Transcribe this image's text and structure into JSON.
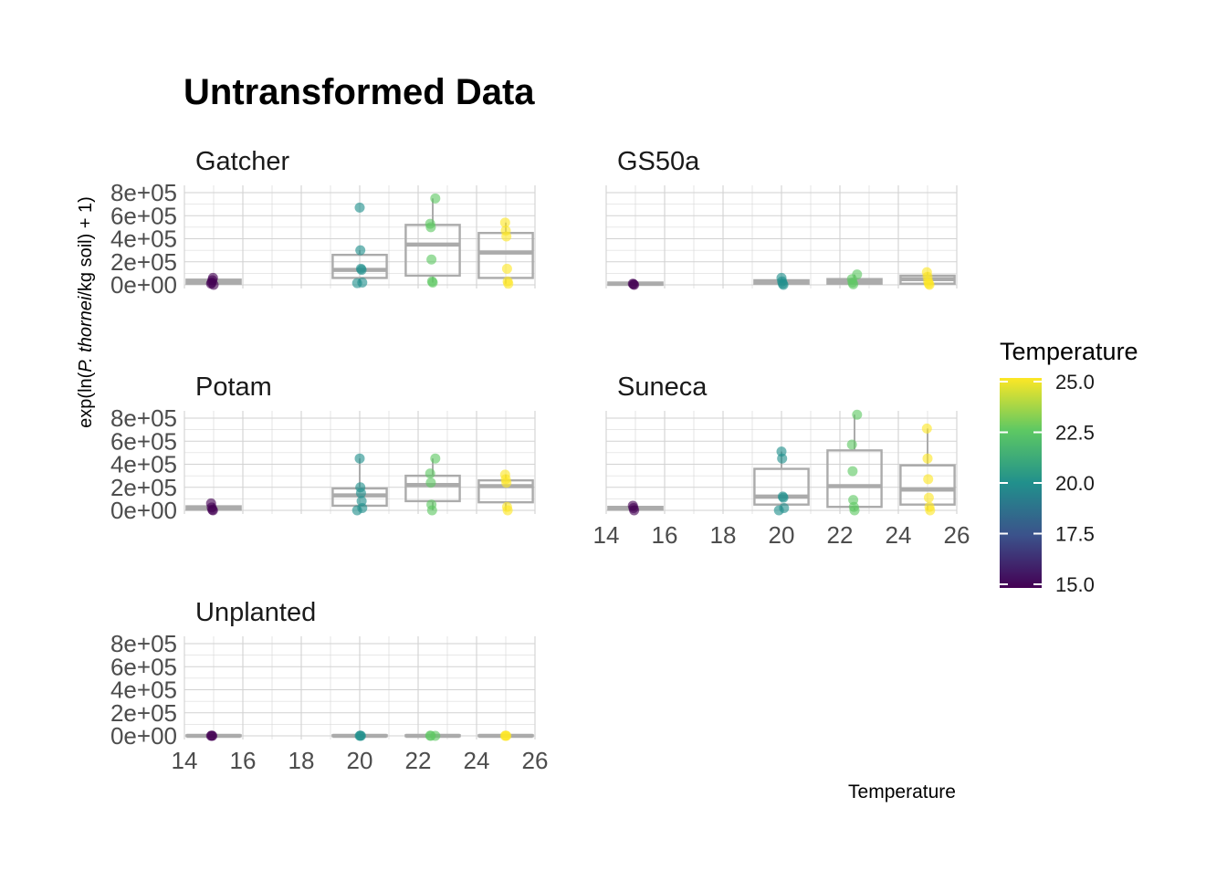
{
  "chart_data": {
    "type": "box",
    "title": "Untransformed Data",
    "xlabel": "Temperature",
    "ylabel_parts": [
      "exp(ln(",
      "P. thornei",
      "/kg soil) + 1)"
    ],
    "xlim": [
      14,
      26
    ],
    "ylim": [
      0,
      800000
    ],
    "x_ticks": [
      "14",
      "16",
      "18",
      "20",
      "22",
      "24",
      "26"
    ],
    "y_ticks": [
      "0e+00",
      "2e+05",
      "4e+05",
      "6e+05",
      "8e+05"
    ],
    "x_tick_values": [
      14,
      16,
      18,
      20,
      22,
      24,
      26
    ],
    "y_tick_values": [
      0,
      200000,
      400000,
      600000,
      800000
    ],
    "grid": true,
    "legend": {
      "title": "Temperature",
      "position": "right",
      "ticks": [
        "15.0",
        "17.5",
        "20.0",
        "22.5",
        "25.0"
      ],
      "tick_values": [
        15,
        17.5,
        20,
        22.5,
        25
      ],
      "range": [
        15,
        25
      ],
      "colors": [
        "#440154",
        "#3B528B",
        "#21908C",
        "#5DC863",
        "#FDE725"
      ]
    },
    "point_colors": {
      "15": "#440154",
      "20": "#21908C",
      "22.5": "#5DC863",
      "25": "#FDE725"
    },
    "box_color": "#ABABAB",
    "panels": [
      {
        "name": "Gatcher",
        "groups": [
          {
            "x": 15,
            "q1": 10000,
            "median": 25000,
            "q3": 45000,
            "whisker_low": 0,
            "whisker_high": 60000,
            "points": [
              10000,
              20000,
              40000,
              60000,
              0
            ]
          },
          {
            "x": 20,
            "q1": 60000,
            "median": 130000,
            "q3": 260000,
            "whisker_low": 15000,
            "whisker_high": 300000,
            "points": [
              670000,
              300000,
              140000,
              130000,
              20000,
              15000
            ]
          },
          {
            "x": 22.5,
            "q1": 80000,
            "median": 350000,
            "q3": 520000,
            "whisker_low": 20000,
            "whisker_high": 750000,
            "points": [
              750000,
              530000,
              500000,
              220000,
              30000,
              20000
            ]
          },
          {
            "x": 25,
            "q1": 60000,
            "median": 280000,
            "q3": 450000,
            "whisker_low": 10000,
            "whisker_high": 540000,
            "points": [
              540000,
              470000,
              420000,
              140000,
              30000,
              10000
            ]
          }
        ]
      },
      {
        "name": "GS50a",
        "groups": [
          {
            "x": 15,
            "q1": 0,
            "median": 10000,
            "q3": 20000,
            "whisker_low": 0,
            "whisker_high": 20000,
            "points": [
              10000,
              5000,
              0
            ]
          },
          {
            "x": 20,
            "q1": 10000,
            "median": 25000,
            "q3": 40000,
            "whisker_low": 0,
            "whisker_high": 60000,
            "points": [
              60000,
              30000,
              10000,
              0
            ]
          },
          {
            "x": 22.5,
            "q1": 10000,
            "median": 30000,
            "q3": 50000,
            "whisker_low": 0,
            "whisker_high": 90000,
            "points": [
              90000,
              50000,
              20000,
              5000
            ]
          },
          {
            "x": 25,
            "q1": 10000,
            "median": 50000,
            "q3": 80000,
            "whisker_low": 0,
            "whisker_high": 110000,
            "points": [
              110000,
              70000,
              30000,
              10000,
              0
            ]
          }
        ]
      },
      {
        "name": "Potam",
        "groups": [
          {
            "x": 15,
            "q1": 5000,
            "median": 20000,
            "q3": 35000,
            "whisker_low": 0,
            "whisker_high": 60000,
            "points": [
              60000,
              25000,
              5000,
              0
            ]
          },
          {
            "x": 20,
            "q1": 40000,
            "median": 130000,
            "q3": 190000,
            "whisker_low": 0,
            "whisker_high": 450000,
            "points": [
              450000,
              200000,
              150000,
              80000,
              20000,
              0
            ]
          },
          {
            "x": 22.5,
            "q1": 80000,
            "median": 220000,
            "q3": 300000,
            "whisker_low": 0,
            "whisker_high": 450000,
            "points": [
              450000,
              320000,
              240000,
              50000,
              0
            ]
          },
          {
            "x": 25,
            "q1": 70000,
            "median": 210000,
            "q3": 260000,
            "whisker_low": 0,
            "whisker_high": 310000,
            "points": [
              310000,
              270000,
              240000,
              30000,
              0
            ]
          }
        ]
      },
      {
        "name": "Suneca",
        "groups": [
          {
            "x": 15,
            "q1": 5000,
            "median": 20000,
            "q3": 30000,
            "whisker_low": 0,
            "whisker_high": 40000,
            "points": [
              40000,
              20000,
              0
            ]
          },
          {
            "x": 20,
            "q1": 50000,
            "median": 120000,
            "q3": 360000,
            "whisker_low": 0,
            "whisker_high": 510000,
            "points": [
              510000,
              450000,
              120000,
              110000,
              20000,
              0
            ]
          },
          {
            "x": 22.5,
            "q1": 30000,
            "median": 210000,
            "q3": 520000,
            "whisker_low": 0,
            "whisker_high": 830000,
            "points": [
              830000,
              570000,
              340000,
              90000,
              30000,
              0
            ]
          },
          {
            "x": 25,
            "q1": 50000,
            "median": 180000,
            "q3": 390000,
            "whisker_low": 0,
            "whisker_high": 710000,
            "points": [
              710000,
              450000,
              270000,
              110000,
              30000,
              0
            ]
          }
        ]
      },
      {
        "name": "Unplanted",
        "groups": [
          {
            "x": 15,
            "q1": 0,
            "median": 0,
            "q3": 5000,
            "whisker_low": 0,
            "whisker_high": 5000,
            "points": [
              0,
              2000,
              0
            ]
          },
          {
            "x": 20,
            "q1": 0,
            "median": 0,
            "q3": 5000,
            "whisker_low": 0,
            "whisker_high": 5000,
            "points": [
              0,
              2000,
              0
            ]
          },
          {
            "x": 22.5,
            "q1": 0,
            "median": 0,
            "q3": 5000,
            "whisker_low": 0,
            "whisker_high": 5000,
            "points": [
              0,
              2000,
              0
            ]
          },
          {
            "x": 25,
            "q1": 0,
            "median": 0,
            "q3": 5000,
            "whisker_low": 0,
            "whisker_high": 5000,
            "points": [
              0,
              2000,
              0
            ]
          }
        ]
      }
    ]
  }
}
